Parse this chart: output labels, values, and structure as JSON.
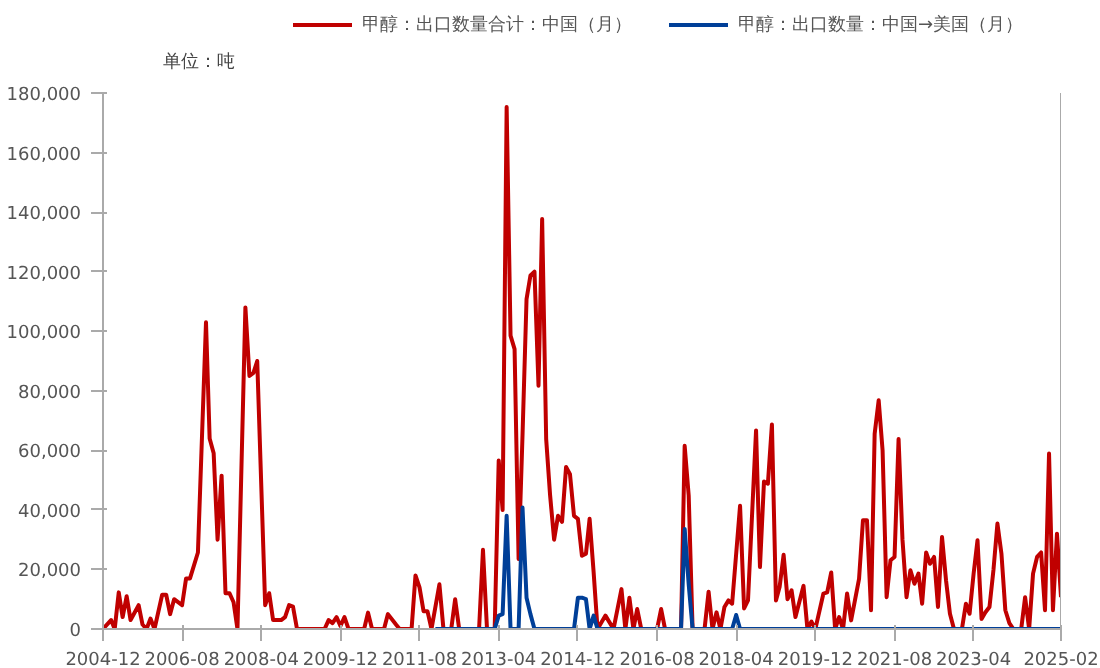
{
  "chart_data": {
    "type": "line",
    "ylabel": "单位：吨",
    "legend": "top",
    "grid": false,
    "marker": "none",
    "line_style": "solid",
    "xlim": [
      "2004-12",
      "2025-02"
    ],
    "xticks": [
      "2004-12",
      "2006-08",
      "2008-04",
      "2009-12",
      "2011-08",
      "2013-04",
      "2014-12",
      "2016-08",
      "2018-04",
      "2019-12",
      "2021-08",
      "2023-04",
      "2025-02"
    ],
    "ylim": [
      0,
      180000
    ],
    "yticks": [
      {
        "value": 0,
        "label": "0"
      },
      {
        "value": 20000,
        "label": "20,000"
      },
      {
        "value": 40000,
        "label": "40,000"
      },
      {
        "value": 60000,
        "label": "60,000"
      },
      {
        "value": 80000,
        "label": "80,000"
      },
      {
        "value": 100000,
        "label": "100,000"
      },
      {
        "value": 120000,
        "label": "120,000"
      },
      {
        "value": 140000,
        "label": "140,000"
      },
      {
        "value": 160000,
        "label": "160,000"
      },
      {
        "value": 180000,
        "label": "180,000"
      }
    ],
    "series": [
      {
        "name": "甲醇：出口数量合计：中国（月）",
        "color": "#c00000",
        "x": [
          "2004-12",
          "2005-02",
          "2005-03",
          "2005-04",
          "2005-05",
          "2005-06",
          "2005-07",
          "2005-09",
          "2005-10",
          "2005-11",
          "2005-12",
          "2006-01",
          "2006-03",
          "2006-04",
          "2006-05",
          "2006-06",
          "2006-08",
          "2006-09",
          "2006-10",
          "2006-12",
          "2007-02",
          "2007-03",
          "2007-04",
          "2007-05",
          "2007-06",
          "2007-07",
          "2007-08",
          "2007-09",
          "2007-10",
          "2007-12",
          "2008-01",
          "2008-02",
          "2008-03",
          "2008-05",
          "2008-06",
          "2008-07",
          "2008-09",
          "2008-10",
          "2008-11",
          "2008-12",
          "2009-01",
          "2009-08",
          "2009-09",
          "2009-10",
          "2009-11",
          "2009-12",
          "2010-01",
          "2010-02",
          "2010-06",
          "2010-07",
          "2010-08",
          "2010-11",
          "2010-12",
          "2011-02",
          "2011-03",
          "2011-06",
          "2011-07",
          "2011-08",
          "2011-09",
          "2011-10",
          "2011-11",
          "2012-01",
          "2012-02",
          "2012-04",
          "2012-05",
          "2012-06",
          "2012-11",
          "2012-12",
          "2013-01",
          "2013-03",
          "2013-04",
          "2013-05",
          "2013-06",
          "2013-07",
          "2013-08",
          "2013-09",
          "2013-10",
          "2013-11",
          "2013-12",
          "2014-01",
          "2014-02",
          "2014-03",
          "2014-04",
          "2014-05",
          "2014-06",
          "2014-07",
          "2014-08",
          "2014-09",
          "2014-10",
          "2014-11",
          "2014-12",
          "2015-01",
          "2015-02",
          "2015-03",
          "2015-04",
          "2015-05",
          "2015-07",
          "2015-09",
          "2015-11",
          "2015-12",
          "2016-01",
          "2016-02",
          "2016-03",
          "2016-04",
          "2016-08",
          "2016-09",
          "2016-10",
          "2017-02",
          "2017-03",
          "2017-04",
          "2017-05",
          "2017-08",
          "2017-09",
          "2017-10",
          "2017-11",
          "2017-12",
          "2018-01",
          "2018-02",
          "2018-03",
          "2018-05",
          "2018-06",
          "2018-07",
          "2018-09",
          "2018-10",
          "2018-11",
          "2018-12",
          "2019-01",
          "2019-02",
          "2019-03",
          "2019-04",
          "2019-05",
          "2019-06",
          "2019-07",
          "2019-09",
          "2019-10",
          "2019-11",
          "2019-12",
          "2020-02",
          "2020-03",
          "2020-04",
          "2020-05",
          "2020-06",
          "2020-07",
          "2020-08",
          "2020-09",
          "2020-11",
          "2020-12",
          "2021-01",
          "2021-02",
          "2021-03",
          "2021-04",
          "2021-05",
          "2021-06",
          "2021-07",
          "2021-08",
          "2021-09",
          "2021-10",
          "2021-11",
          "2021-12",
          "2022-01",
          "2022-02",
          "2022-03",
          "2022-04",
          "2022-05",
          "2022-06",
          "2022-07",
          "2022-08",
          "2022-09",
          "2022-10",
          "2022-11",
          "2022-12",
          "2023-01",
          "2023-02",
          "2023-03",
          "2023-04",
          "2023-05",
          "2023-06",
          "2023-07",
          "2023-08",
          "2023-09",
          "2023-10",
          "2023-11",
          "2023-12",
          "2024-01",
          "2024-02",
          "2024-03",
          "2024-04",
          "2024-05",
          "2024-06",
          "2024-07",
          "2024-08",
          "2024-09",
          "2024-10",
          "2024-11",
          "2024-12",
          "2025-01",
          "2025-02"
        ],
        "values": [
          0,
          3000,
          0,
          12300,
          4000,
          11000,
          3000,
          8000,
          1500,
          0,
          3500,
          0,
          11500,
          11500,
          5000,
          10000,
          8000,
          17000,
          17000,
          25700,
          103000,
          64000,
          59000,
          30000,
          51500,
          12000,
          12000,
          9000,
          0,
          108000,
          85000,
          86000,
          90000,
          8000,
          12000,
          3000,
          3000,
          4000,
          8000,
          7500,
          0,
          0,
          3000,
          2000,
          4000,
          1000,
          4000,
          0,
          0,
          5500,
          0,
          0,
          5000,
          1500,
          0,
          0,
          18000,
          14000,
          6000,
          6000,
          0,
          15000,
          0,
          0,
          10000,
          0,
          0,
          26600,
          0,
          0,
          56600,
          40000,
          175300,
          98500,
          94000,
          23500,
          65000,
          110800,
          118700,
          120000,
          81700,
          137700,
          63800,
          45000,
          30000,
          38000,
          36000,
          54400,
          52000,
          38000,
          37000,
          24600,
          25300,
          37000,
          19000,
          0,
          4500,
          0,
          13400,
          0,
          10500,
          0,
          6700,
          0,
          0,
          6700,
          0,
          0,
          61500,
          44800,
          0,
          0,
          12500,
          0,
          5600,
          0,
          7400,
          9600,
          8500,
          41400,
          6900,
          9600,
          66700,
          20800,
          49500,
          48800,
          68700,
          9600,
          14100,
          24900,
          10000,
          13000,
          4000,
          14500,
          0,
          2500,
          0,
          11900,
          12300,
          19000,
          0,
          4000,
          0,
          11900,
          2900,
          16800,
          36500,
          36500,
          6300,
          65600,
          76800,
          60000,
          10700,
          23100,
          24200,
          63800,
          30000,
          10700,
          19700,
          15200,
          18600,
          8500,
          25700,
          21900,
          24200,
          7400,
          30900,
          16300,
          5100,
          0,
          0,
          0,
          8500,
          5100,
          18600,
          29800,
          3400,
          5600,
          7400,
          20000,
          35400,
          25300,
          6300,
          2000,
          0,
          0,
          0,
          10700,
          0,
          18600,
          24200,
          25700,
          6300,
          58900,
          6300,
          32000,
          10700
        ]
      },
      {
        "name": "甲醇：出口数量：中国→美国（月）",
        "color": "#003f98",
        "x": [
          "2011-12",
          "2013-03",
          "2013-04",
          "2013-05",
          "2013-06",
          "2013-07",
          "2013-09",
          "2013-10",
          "2013-11",
          "2013-12",
          "2014-01",
          "2014-11",
          "2014-12",
          "2015-01",
          "2015-02",
          "2015-03",
          "2015-04",
          "2015-05",
          "2017-02",
          "2017-03",
          "2017-04",
          "2017-05",
          "2018-03",
          "2018-04",
          "2018-05",
          "2025-02"
        ],
        "values": [
          0,
          0,
          4500,
          5000,
          38000,
          0,
          0,
          40800,
          10500,
          5000,
          0,
          0,
          10500,
          10500,
          10000,
          0,
          4500,
          0,
          0,
          33600,
          15000,
          0,
          0,
          4700,
          0,
          0
        ]
      }
    ]
  }
}
